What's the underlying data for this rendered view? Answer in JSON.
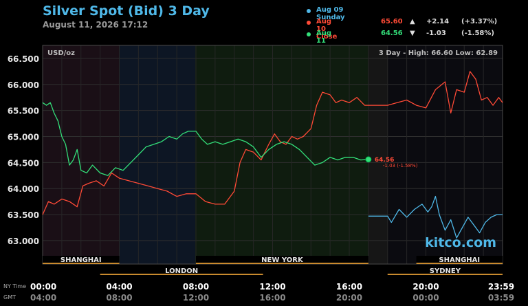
{
  "header": {
    "title": "Silver Spot (Bid) 3 Day",
    "date": "August 11, 2026 17:12"
  },
  "legend": [
    {
      "label": "Aug 09 Sunday",
      "color": "#4fb8e8",
      "value": "",
      "arrow": "",
      "change": "",
      "pct": ""
    },
    {
      "label": "Aug 10 Close",
      "color": "#ff4a36",
      "value": "65.60",
      "arrow": "▲",
      "change": "+2.14",
      "pct": "(+3.37%)"
    },
    {
      "label": "Aug 11 Close",
      "color": "#33e07a",
      "value": "64.56",
      "arrow": "▼",
      "change": "-1.03",
      "pct": "(-1.58%)"
    }
  ],
  "plot": {
    "unit": "USD/oz",
    "range_text": "3 Day - High: 66.60  Low: 62.89",
    "last_value": "64.56",
    "last_change": "-1.03 (-1.58%)",
    "watermark": "kitco.com"
  },
  "sessions": {
    "top": [
      {
        "label": "SHANGHAI",
        "start": 0,
        "end": 4
      },
      {
        "label": "NEW YORK",
        "start": 8,
        "end": 17
      },
      {
        "label": "SHANGHAI",
        "start": 19.5,
        "end": 24
      }
    ],
    "bottom": [
      {
        "label": "LONDON",
        "start": 3,
        "end": 11.5
      },
      {
        "label": "SYDNEY",
        "start": 18,
        "end": 24
      }
    ]
  },
  "time_axis": {
    "ny_label": "NY Time",
    "gmt_label": "GMT",
    "ticks": [
      {
        "h": 0,
        "ny": "00:00",
        "gmt": "04:00"
      },
      {
        "h": 4,
        "ny": "04:00",
        "gmt": "08:00"
      },
      {
        "h": 8,
        "ny": "08:00",
        "gmt": "12:00"
      },
      {
        "h": 12,
        "ny": "12:00",
        "gmt": "16:00"
      },
      {
        "h": 16,
        "ny": "16:00",
        "gmt": "20:00"
      },
      {
        "h": 20,
        "ny": "20:00",
        "gmt": "00:00"
      },
      {
        "h": 24,
        "ny": "23:59",
        "gmt": "03:59"
      }
    ]
  },
  "chart_data": {
    "type": "line",
    "title": "Silver Spot (Bid) 3 Day",
    "ylabel": "USD/oz",
    "ylim": [
      62.55,
      66.75
    ],
    "xlim": [
      0,
      24
    ],
    "yticks": [
      63.0,
      63.5,
      64.0,
      64.5,
      65.0,
      65.5,
      66.0,
      66.5
    ],
    "ytick_labels": [
      "63.000",
      "63.500",
      "64.000",
      "64.500",
      "65.000",
      "65.500",
      "66.000",
      "66.500"
    ],
    "grid": true,
    "series": [
      {
        "name": "Aug 09 Sunday",
        "color": "#4fb8e8",
        "x": [
          17.0,
          18.0,
          18.2,
          18.6,
          19.0,
          19.4,
          19.8,
          20.1,
          20.3,
          20.5,
          20.7,
          21.0,
          21.3,
          21.6,
          21.9,
          22.2,
          22.5,
          22.8,
          23.1,
          23.4,
          23.7,
          24.0
        ],
        "y": [
          63.47,
          63.47,
          63.35,
          63.6,
          63.45,
          63.6,
          63.7,
          63.55,
          63.65,
          63.85,
          63.5,
          63.2,
          63.4,
          63.05,
          63.25,
          63.45,
          63.3,
          63.15,
          63.35,
          63.45,
          63.5,
          63.5
        ]
      },
      {
        "name": "Aug 10 Close",
        "color": "#ff4a36",
        "x": [
          0.0,
          0.3,
          0.6,
          1.0,
          1.4,
          1.8,
          2.1,
          2.4,
          2.8,
          3.2,
          3.6,
          4.0,
          4.5,
          5.0,
          5.5,
          6.0,
          6.5,
          7.0,
          7.5,
          8.0,
          8.5,
          9.0,
          9.5,
          10.0,
          10.3,
          10.6,
          11.0,
          11.4,
          11.8,
          12.1,
          12.4,
          12.7,
          13.0,
          13.3,
          13.6,
          14.0,
          14.3,
          14.6,
          15.0,
          15.3,
          15.6,
          16.0,
          16.4,
          16.8,
          17.0,
          18.0,
          18.5,
          19.0,
          19.5,
          20.0,
          20.5,
          21.0,
          21.3,
          21.6,
          22.0,
          22.3,
          22.6,
          22.9,
          23.2,
          23.5,
          23.8,
          24.0
        ],
        "y": [
          63.5,
          63.75,
          63.7,
          63.8,
          63.75,
          63.65,
          64.05,
          64.1,
          64.15,
          64.05,
          64.3,
          64.2,
          64.15,
          64.1,
          64.05,
          64.0,
          63.95,
          63.85,
          63.9,
          63.9,
          63.75,
          63.7,
          63.7,
          63.95,
          64.5,
          64.75,
          64.7,
          64.55,
          64.85,
          65.05,
          64.9,
          64.85,
          65.0,
          64.95,
          65.0,
          65.15,
          65.6,
          65.85,
          65.8,
          65.65,
          65.7,
          65.65,
          65.75,
          65.6,
          65.6,
          65.6,
          65.65,
          65.7,
          65.6,
          65.55,
          65.9,
          66.05,
          65.45,
          65.9,
          65.85,
          66.25,
          66.1,
          65.7,
          65.75,
          65.6,
          65.75,
          65.65
        ]
      },
      {
        "name": "Aug 11 Close",
        "color": "#33e07a",
        "x": [
          0.0,
          0.2,
          0.4,
          0.6,
          0.8,
          1.0,
          1.2,
          1.4,
          1.6,
          1.8,
          2.0,
          2.3,
          2.6,
          3.0,
          3.4,
          3.8,
          4.2,
          4.6,
          5.0,
          5.4,
          5.8,
          6.2,
          6.6,
          7.0,
          7.3,
          7.6,
          8.0,
          8.3,
          8.6,
          9.0,
          9.4,
          9.8,
          10.2,
          10.6,
          11.0,
          11.4,
          11.8,
          12.2,
          12.6,
          13.0,
          13.4,
          13.8,
          14.2,
          14.6,
          15.0,
          15.4,
          15.8,
          16.2,
          16.6,
          17.0
        ],
        "y": [
          65.65,
          65.6,
          65.65,
          65.45,
          65.3,
          65.0,
          64.85,
          64.45,
          64.55,
          64.75,
          64.35,
          64.3,
          64.45,
          64.3,
          64.25,
          64.4,
          64.35,
          64.5,
          64.65,
          64.8,
          64.85,
          64.9,
          65.0,
          64.95,
          65.05,
          65.1,
          65.1,
          64.95,
          64.85,
          64.9,
          64.85,
          64.9,
          64.95,
          64.9,
          64.8,
          64.6,
          64.75,
          64.85,
          64.9,
          64.85,
          64.75,
          64.6,
          64.45,
          64.5,
          64.6,
          64.55,
          64.6,
          64.6,
          64.55,
          64.56
        ]
      }
    ]
  }
}
